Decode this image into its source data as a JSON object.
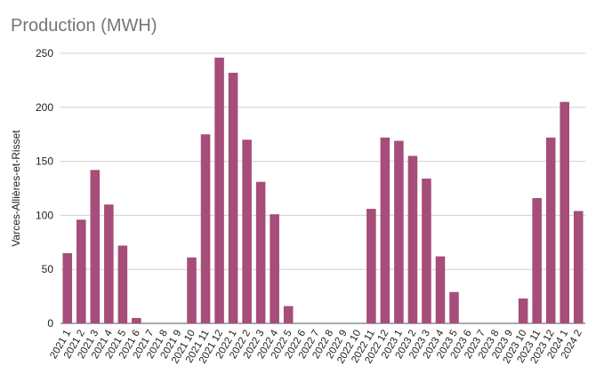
{
  "chart_data": {
    "type": "bar",
    "title": "Production (MWH)",
    "xlabel": "",
    "ylabel": "Varces-Allières-et-Risset",
    "ylim": [
      0,
      250
    ],
    "yticks": [
      0,
      50,
      100,
      150,
      200,
      250
    ],
    "bar_color": "#a64d79",
    "grid": true,
    "categories": [
      "2021 1",
      "2021 2",
      "2021 3",
      "2021 4",
      "2021 5",
      "2021 6",
      "2021 7",
      "2021 8",
      "2021 9",
      "2021 10",
      "2021 11",
      "2021 12",
      "2022 1",
      "2022 2",
      "2022 3",
      "2022 4",
      "2022 5",
      "2022 6",
      "2022 7",
      "2022 8",
      "2022 9",
      "2022 10",
      "2022 11",
      "2022 12",
      "2023 1",
      "2023 2",
      "2023 3",
      "2023 4",
      "2023 5",
      "2023 6",
      "2023 7",
      "2023 8",
      "2023 9",
      "2023 10",
      "2023 11",
      "2023 12",
      "2024 1",
      "2024 2"
    ],
    "values": [
      65,
      96,
      142,
      110,
      72,
      5,
      0,
      0,
      0,
      61,
      175,
      246,
      232,
      170,
      131,
      101,
      16,
      0,
      0,
      0,
      0,
      0,
      106,
      172,
      169,
      155,
      134,
      62,
      29,
      0,
      0,
      0,
      0,
      23,
      116,
      172,
      205,
      104
    ]
  }
}
